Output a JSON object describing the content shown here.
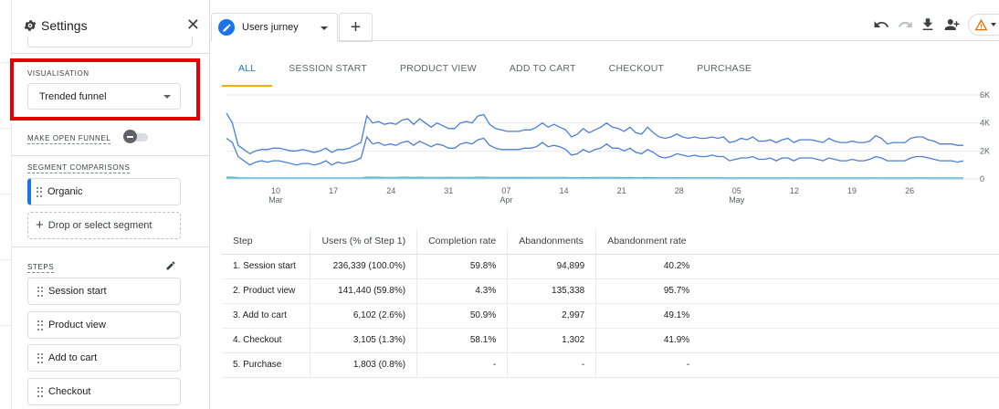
{
  "panel": {
    "title": "Settings",
    "close_label": "✕",
    "visualisation_label": "VISUALISATION",
    "visualisation_value": "Trended funnel",
    "open_funnel_label": "MAKE OPEN FUNNEL",
    "segment_label": "SEGMENT COMPARISONS",
    "segment": "Organic",
    "drop_segment": "Drop or select segment",
    "steps_label": "STEPS",
    "steps": [
      "Session start",
      "Product view",
      "Add to cart",
      "Checkout"
    ]
  },
  "tab": {
    "name": "Users jurney",
    "add_label": "+"
  },
  "step_tabs": [
    "ALL",
    "SESSION START",
    "PRODUCT VIEW",
    "ADD TO CART",
    "CHECKOUT",
    "PURCHASE"
  ],
  "chart_data": {
    "type": "line",
    "x_ticks": [
      {
        "day": "10",
        "month": "Mar"
      },
      {
        "day": "17",
        "month": ""
      },
      {
        "day": "24",
        "month": ""
      },
      {
        "day": "31",
        "month": ""
      },
      {
        "day": "07",
        "month": "Apr"
      },
      {
        "day": "14",
        "month": ""
      },
      {
        "day": "21",
        "month": ""
      },
      {
        "day": "28",
        "month": ""
      },
      {
        "day": "05",
        "month": "May"
      },
      {
        "day": "12",
        "month": ""
      },
      {
        "day": "19",
        "month": ""
      },
      {
        "day": "26",
        "month": ""
      }
    ],
    "y_ticks": [
      "6K",
      "4K",
      "2K",
      "0"
    ],
    "ylim": [
      0,
      6000
    ],
    "series": [
      {
        "values": [
          4700,
          4000,
          2400,
          2100,
          1800,
          2000,
          2100,
          2100,
          2200,
          2200,
          2100,
          2000,
          2000,
          2100,
          2000,
          1900,
          2000,
          2200,
          1900,
          2100,
          2100,
          2200,
          2400,
          2600,
          4500,
          4000,
          4100,
          3900,
          4000,
          3900,
          4200,
          4300,
          3900,
          4300,
          4000,
          3700,
          4000,
          3800,
          3600,
          3600,
          4000,
          4100,
          4000,
          4500,
          4600,
          3900,
          3600,
          3500,
          3400,
          3400,
          3400,
          3500,
          3500,
          3700,
          4000,
          3700,
          3900,
          3700,
          3500,
          3000,
          3200,
          3600,
          3300,
          3500,
          3700,
          4000,
          3700,
          3600,
          3400,
          3700,
          3300,
          3200,
          3700,
          3300,
          3000,
          2900,
          3000,
          3200,
          3000,
          2900,
          3000,
          2900,
          2900,
          3000,
          2900,
          3000,
          2600,
          2700,
          2900,
          2800,
          3000,
          2700,
          2700,
          2800,
          2600,
          2800,
          2900,
          2600,
          2800,
          2800,
          2800,
          2700,
          2600,
          2900,
          2700,
          2600,
          2600,
          2700,
          2600,
          2600,
          2700,
          3100,
          2900,
          2500,
          2600,
          2600,
          2600,
          2900,
          3000,
          3000,
          2800,
          2700,
          2500,
          2500,
          2500,
          2400,
          2400
        ]
      },
      {
        "values": [
          2900,
          2600,
          1600,
          1300,
          1000,
          1200,
          1300,
          1200,
          1300,
          1300,
          1200,
          1100,
          1000,
          1100,
          1100,
          1000,
          1100,
          1300,
          1000,
          1200,
          1100,
          1200,
          1300,
          1500,
          3000,
          2500,
          2600,
          2400,
          2500,
          2400,
          2600,
          2700,
          2400,
          2700,
          2500,
          2300,
          2500,
          2400,
          2200,
          2200,
          2500,
          2600,
          2500,
          2800,
          2900,
          2400,
          2200,
          2100,
          2100,
          2100,
          2100,
          2200,
          2200,
          2300,
          2600,
          2300,
          2400,
          2300,
          2100,
          1700,
          1800,
          2100,
          1900,
          2100,
          2200,
          2500,
          2200,
          2200,
          2000,
          2200,
          1900,
          1800,
          2100,
          1900,
          1600,
          1500,
          1600,
          1800,
          1700,
          1600,
          1700,
          1600,
          1600,
          1700,
          1600,
          1600,
          1300,
          1400,
          1500,
          1500,
          1600,
          1400,
          1400,
          1500,
          1300,
          1500,
          1500,
          1300,
          1500,
          1500,
          1500,
          1400,
          1300,
          1500,
          1400,
          1300,
          1300,
          1400,
          1300,
          1300,
          1400,
          1600,
          1500,
          1300,
          1300,
          1300,
          1300,
          1500,
          1600,
          1600,
          1500,
          1400,
          1300,
          1300,
          1300,
          1200,
          1300
        ]
      },
      {
        "values": [
          120,
          110,
          80,
          70,
          60,
          60,
          60,
          60,
          60,
          60,
          60,
          60,
          60,
          60,
          60,
          60,
          60,
          60,
          60,
          60,
          60,
          60,
          60,
          60,
          120,
          110,
          110,
          100,
          100,
          100,
          110,
          110,
          100,
          110,
          100,
          100,
          100,
          100,
          90,
          90,
          100,
          100,
          100,
          110,
          110,
          100,
          90,
          90,
          90,
          90,
          90,
          90,
          90,
          90,
          100,
          90,
          100,
          90,
          90,
          80,
          80,
          90,
          80,
          90,
          90,
          100,
          90,
          90,
          80,
          90,
          80,
          80,
          90,
          80,
          70,
          70,
          70,
          80,
          70,
          70,
          70,
          70,
          70,
          70,
          70,
          70,
          60,
          60,
          70,
          60,
          70,
          60,
          60,
          60,
          60,
          60,
          70,
          60,
          60,
          60,
          60,
          60,
          60,
          60,
          60,
          60,
          60,
          60,
          60,
          60,
          60,
          70,
          60,
          60,
          60,
          60,
          60,
          60,
          70,
          70,
          60,
          60,
          60,
          60,
          60,
          60,
          60
        ]
      },
      {
        "values": [
          40,
          40,
          30,
          30,
          30,
          30,
          30,
          30,
          30,
          30,
          30,
          30,
          30,
          30,
          30,
          30,
          30,
          30,
          30,
          30,
          30,
          30,
          30,
          30,
          40,
          40,
          40,
          40,
          40,
          40,
          40,
          40,
          40,
          40,
          40,
          40,
          40,
          40,
          30,
          30,
          40,
          40,
          40,
          40,
          40,
          40,
          30,
          30,
          30,
          30,
          30,
          30,
          30,
          30,
          40,
          30,
          40,
          30,
          30,
          30,
          30,
          30,
          30,
          30,
          30,
          40,
          30,
          30,
          30,
          30,
          30,
          30,
          30,
          30,
          30,
          30,
          30,
          30,
          30,
          30,
          30,
          30,
          30,
          30,
          30,
          30,
          20,
          20,
          30,
          20,
          30,
          20,
          20,
          20,
          20,
          20,
          30,
          20,
          20,
          20,
          20,
          20,
          20,
          20,
          20,
          20,
          20,
          20,
          20,
          20,
          20,
          30,
          20,
          20,
          20,
          20,
          20,
          20,
          30,
          30,
          20,
          20,
          20,
          20,
          20,
          20,
          20
        ]
      }
    ],
    "colors": [
      "#4a7fd6",
      "#4a7fd6",
      "#4ab3c8",
      "#8ccbdd"
    ]
  },
  "table": {
    "headers": [
      "Step",
      "Users (% of Step 1)",
      "Completion rate",
      "Abandonments",
      "Abandonment rate"
    ],
    "rows": [
      [
        "1. Session start",
        "236,339 (100.0%)",
        "59.8%",
        "94,899",
        "40.2%"
      ],
      [
        "2. Product view",
        "141,440 (59.8%)",
        "4.3%",
        "135,338",
        "95.7%"
      ],
      [
        "3. Add to cart",
        "6,102 (2.6%)",
        "50.9%",
        "2,997",
        "49.1%"
      ],
      [
        "4. Checkout",
        "3,105 (1.3%)",
        "58.1%",
        "1,302",
        "41.9%"
      ],
      [
        "5. Purchase",
        "1,803 (0.8%)",
        "-",
        "-",
        "-"
      ]
    ]
  }
}
